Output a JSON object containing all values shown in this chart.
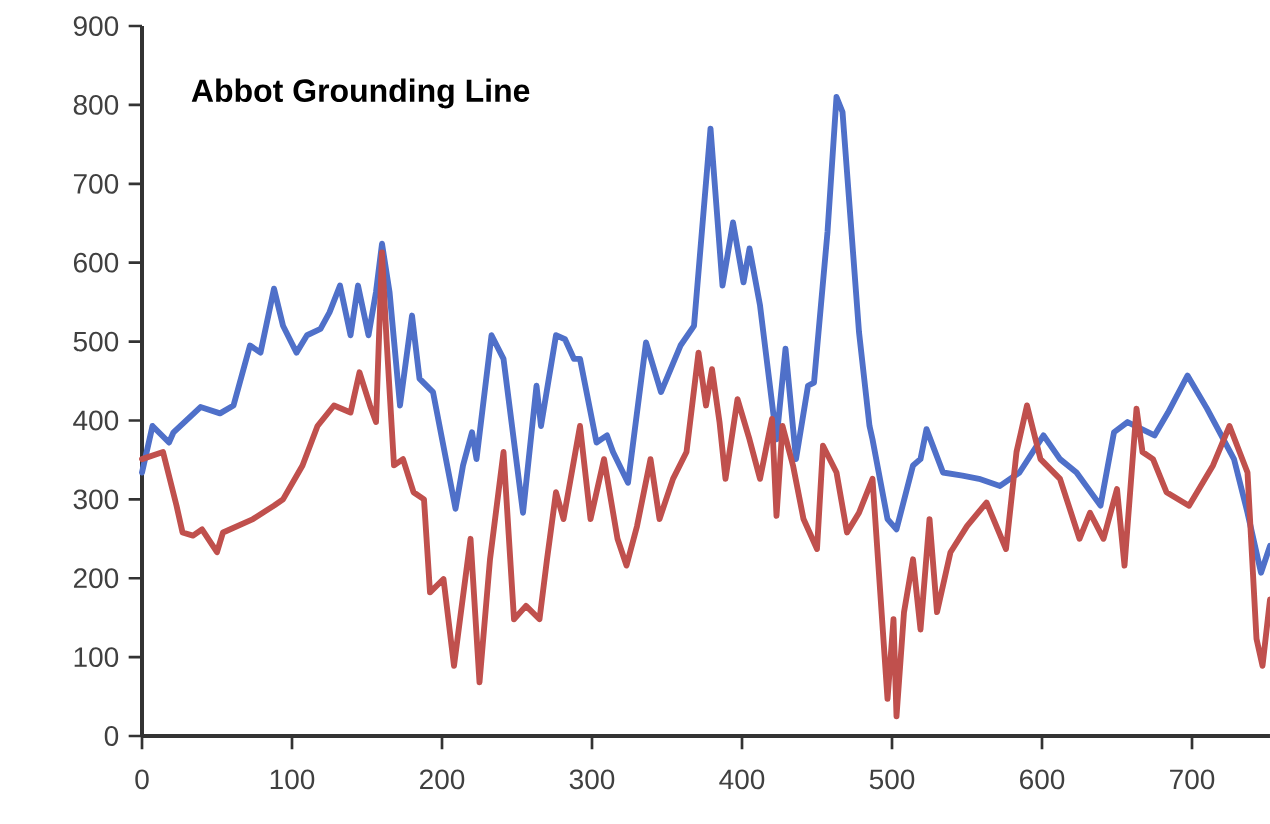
{
  "chart_data": {
    "type": "line",
    "title": "Abbot Grounding Line",
    "xlim": [
      0,
      752
    ],
    "ylim": [
      0,
      900
    ],
    "xticks": [
      0,
      100,
      200,
      300,
      400,
      500,
      600,
      700
    ],
    "yticks": [
      0,
      100,
      200,
      300,
      400,
      500,
      600,
      700,
      800,
      900
    ],
    "grid": false,
    "legend": false,
    "marker": "none",
    "line_style": "solid",
    "series": [
      {
        "color": "#4f70c9",
        "x": [
          0,
          7,
          18,
          21,
          39,
          52,
          61,
          72,
          79,
          88,
          94,
          103,
          110,
          119,
          125,
          132,
          139,
          144,
          151,
          156,
          160,
          165,
          172,
          180,
          185,
          194,
          209,
          214,
          220,
          223,
          233,
          241,
          254,
          263,
          266,
          276,
          282,
          288,
          292,
          303,
          310,
          314,
          324,
          336,
          346,
          359,
          368,
          379,
          387,
          394,
          401,
          405,
          412,
          423,
          429,
          436,
          444,
          448,
          457,
          463,
          467,
          478,
          485,
          487,
          497,
          503,
          514,
          519,
          523,
          534,
          547,
          558,
          572,
          585,
          601,
          612,
          623,
          639,
          648,
          657,
          675,
          684,
          697,
          710,
          728,
          737,
          746,
          752
        ],
        "values": [
          334,
          393,
          372,
          385,
          417,
          409,
          419,
          495,
          486,
          567,
          520,
          486,
          508,
          516,
          537,
          571,
          508,
          571,
          508,
          563,
          624,
          563,
          419,
          533,
          453,
          436,
          288,
          343,
          385,
          351,
          508,
          478,
          283,
          444,
          393,
          508,
          503,
          478,
          478,
          372,
          381,
          360,
          321,
          499,
          436,
          495,
          520,
          770,
          571,
          651,
          575,
          618,
          546,
          376,
          491,
          351,
          444,
          448,
          639,
          810,
          791,
          512,
          393,
          376,
          275,
          262,
          343,
          351,
          389,
          334,
          330,
          326,
          317,
          334,
          381,
          351,
          334,
          292,
          385,
          398,
          381,
          410,
          457,
          415,
          351,
          283,
          207,
          241
        ]
      },
      {
        "color": "#c0504d",
        "x": [
          0,
          14,
          23,
          27,
          34,
          40,
          50,
          54,
          74,
          88,
          94,
          107,
          117,
          128,
          139,
          145,
          152,
          156,
          160,
          163,
          168,
          174,
          181,
          188,
          192,
          201,
          208,
          212,
          219,
          225,
          232,
          241,
          248,
          256,
          265,
          270,
          276,
          281,
          292,
          299,
          308,
          317,
          323,
          330,
          339,
          345,
          354,
          363,
          371,
          376,
          380,
          385,
          389,
          397,
          405,
          412,
          420,
          423,
          427,
          434,
          441,
          450,
          454,
          463,
          470,
          478,
          487,
          497,
          501,
          503,
          508,
          514,
          519,
          525,
          530,
          539,
          550,
          563,
          576,
          583,
          590,
          599,
          612,
          625,
          632,
          641,
          650,
          655,
          663,
          667,
          674,
          683,
          698,
          714,
          725,
          737,
          743,
          747,
          752
        ],
        "values": [
          351,
          360,
          292,
          258,
          254,
          262,
          233,
          258,
          275,
          292,
          300,
          343,
          393,
          419,
          410,
          461,
          419,
          398,
          613,
          503,
          343,
          351,
          309,
          300,
          182,
          199,
          89,
          148,
          250,
          68,
          224,
          360,
          148,
          165,
          148,
          224,
          309,
          275,
          393,
          275,
          351,
          250,
          216,
          266,
          351,
          275,
          326,
          360,
          486,
          419,
          465,
          398,
          326,
          427,
          376,
          326,
          402,
          279,
          393,
          343,
          275,
          237,
          368,
          334,
          258,
          283,
          326,
          47,
          148,
          25,
          157,
          224,
          135,
          275,
          157,
          233,
          266,
          296,
          237,
          360,
          419,
          351,
          326,
          250,
          283,
          250,
          313,
          216,
          415,
          360,
          351,
          309,
          292,
          343,
          393,
          334,
          123,
          89,
          173
        ]
      }
    ]
  }
}
